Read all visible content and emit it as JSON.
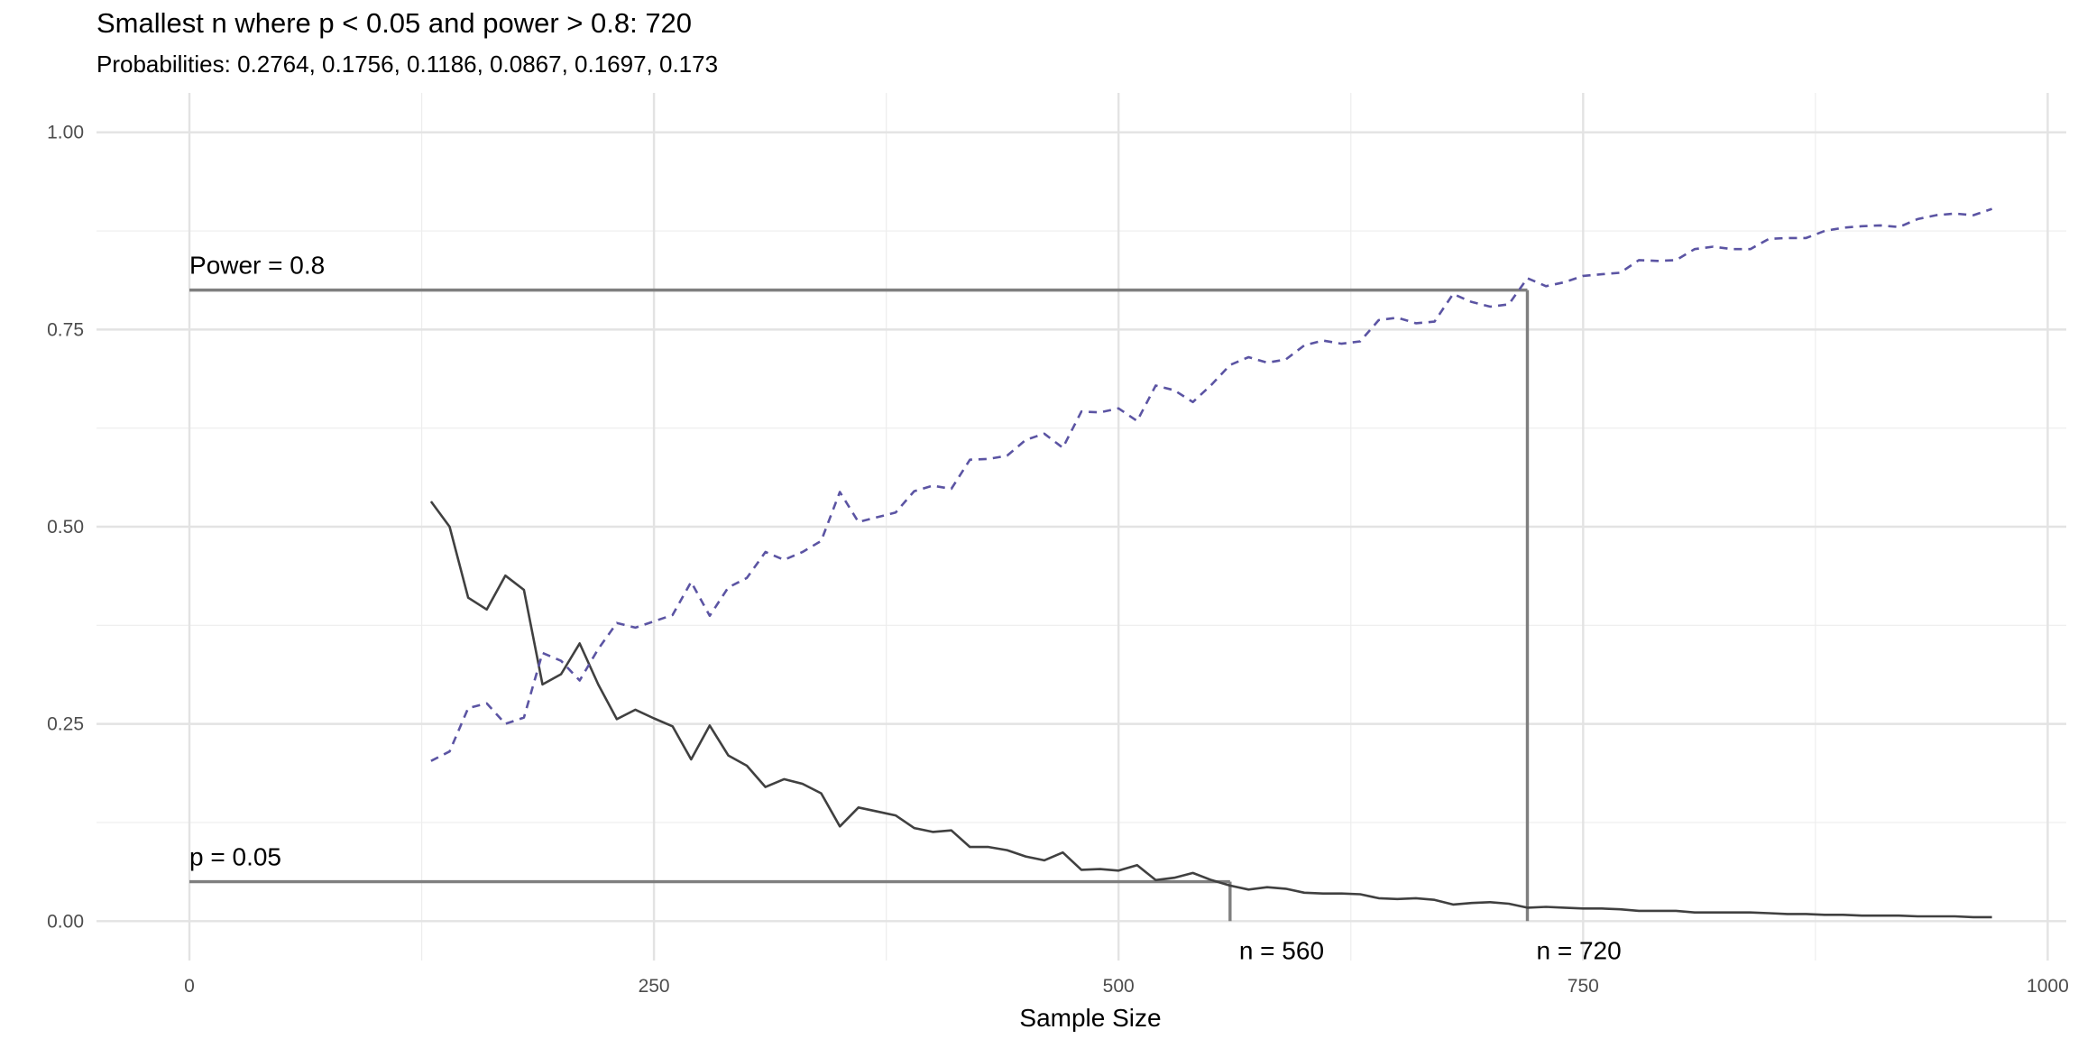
{
  "title": "Smallest n where p < 0.05 and power > 0.8: 720",
  "subtitle": "Probabilities: 0.2764, 0.1756, 0.1186, 0.0867, 0.1697, 0.173",
  "chart_data": {
    "type": "line",
    "title": "Smallest n where p < 0.05 and power > 0.8: 720",
    "subtitle": "Probabilities: 0.2764, 0.1756, 0.1186, 0.0867, 0.1697, 0.173",
    "xlabel": "Sample Size",
    "ylabel": "",
    "xlim": [
      -50,
      1010
    ],
    "ylim": [
      -0.05,
      1.05
    ],
    "x_ticks": [
      0,
      250,
      500,
      750,
      1000
    ],
    "x_tick_labels": [
      "0",
      "250",
      "500",
      "750",
      "1000"
    ],
    "y_ticks": [
      0,
      0.25,
      0.5,
      0.75,
      1.0
    ],
    "y_tick_labels": [
      "0.00",
      "0.25",
      "0.50",
      "0.75",
      "1.00"
    ],
    "grid": true,
    "legend": "none",
    "x": [
      130,
      140,
      150,
      160,
      170,
      180,
      190,
      200,
      210,
      220,
      230,
      240,
      250,
      260,
      270,
      280,
      290,
      300,
      310,
      320,
      330,
      340,
      350,
      360,
      370,
      380,
      390,
      400,
      410,
      420,
      430,
      440,
      450,
      460,
      470,
      480,
      490,
      500,
      510,
      520,
      530,
      540,
      550,
      560,
      570,
      580,
      590,
      600,
      610,
      620,
      630,
      640,
      650,
      660,
      670,
      680,
      690,
      700,
      710,
      720,
      730,
      740,
      750,
      760,
      770,
      780,
      790,
      800,
      810,
      820,
      830,
      840,
      850,
      860,
      870,
      880,
      890,
      900,
      910,
      920,
      930,
      940,
      950,
      960,
      970
    ],
    "series": [
      {
        "color": "#404040",
        "dash": "solid",
        "values": [
          0.532,
          0.5,
          0.41,
          0.395,
          0.438,
          0.42,
          0.3,
          0.313,
          0.352,
          0.3,
          0.256,
          0.268,
          0.257,
          0.247,
          0.205,
          0.248,
          0.21,
          0.197,
          0.17,
          0.18,
          0.174,
          0.162,
          0.12,
          0.144,
          0.139,
          0.134,
          0.118,
          0.113,
          0.115,
          0.094,
          0.094,
          0.09,
          0.082,
          0.077,
          0.087,
          0.065,
          0.066,
          0.064,
          0.071,
          0.052,
          0.055,
          0.061,
          0.052,
          0.045,
          0.04,
          0.043,
          0.041,
          0.036,
          0.035,
          0.035,
          0.034,
          0.029,
          0.028,
          0.029,
          0.027,
          0.021,
          0.023,
          0.024,
          0.022,
          0.017,
          0.018,
          0.017,
          0.016,
          0.016,
          0.015,
          0.013,
          0.013,
          0.013,
          0.011,
          0.011,
          0.011,
          0.011,
          0.01,
          0.009,
          0.009,
          0.008,
          0.008,
          0.007,
          0.007,
          0.007,
          0.006,
          0.006,
          0.006,
          0.005,
          0.005
        ]
      },
      {
        "color": "#5b54a3",
        "dash": "dashed",
        "values": [
          0.203,
          0.215,
          0.27,
          0.276,
          0.25,
          0.258,
          0.34,
          0.33,
          0.305,
          0.345,
          0.378,
          0.372,
          0.38,
          0.388,
          0.43,
          0.387,
          0.423,
          0.435,
          0.468,
          0.458,
          0.468,
          0.482,
          0.544,
          0.506,
          0.512,
          0.518,
          0.545,
          0.552,
          0.548,
          0.585,
          0.586,
          0.59,
          0.61,
          0.618,
          0.6,
          0.646,
          0.645,
          0.65,
          0.634,
          0.679,
          0.673,
          0.658,
          0.68,
          0.705,
          0.715,
          0.708,
          0.712,
          0.73,
          0.736,
          0.732,
          0.735,
          0.762,
          0.765,
          0.758,
          0.76,
          0.795,
          0.785,
          0.779,
          0.782,
          0.815,
          0.805,
          0.81,
          0.818,
          0.82,
          0.822,
          0.838,
          0.837,
          0.838,
          0.852,
          0.855,
          0.852,
          0.852,
          0.865,
          0.866,
          0.866,
          0.875,
          0.879,
          0.881,
          0.882,
          0.88,
          0.89,
          0.895,
          0.897,
          0.895,
          0.903
        ]
      }
    ],
    "reference_lines": [
      {
        "label": "Power = 0.8",
        "y": 0.8,
        "x_start": 0,
        "x_end": 720,
        "label_x": 0
      },
      {
        "label": "p = 0.05",
        "y": 0.05,
        "x_start": 0,
        "x_end": 560,
        "label_x": 0
      }
    ],
    "vertical_markers": [
      {
        "label": "n = 560",
        "x": 560,
        "y_top": 0.05
      },
      {
        "label": "n = 720",
        "x": 720,
        "y_top": 0.8
      }
    ]
  }
}
